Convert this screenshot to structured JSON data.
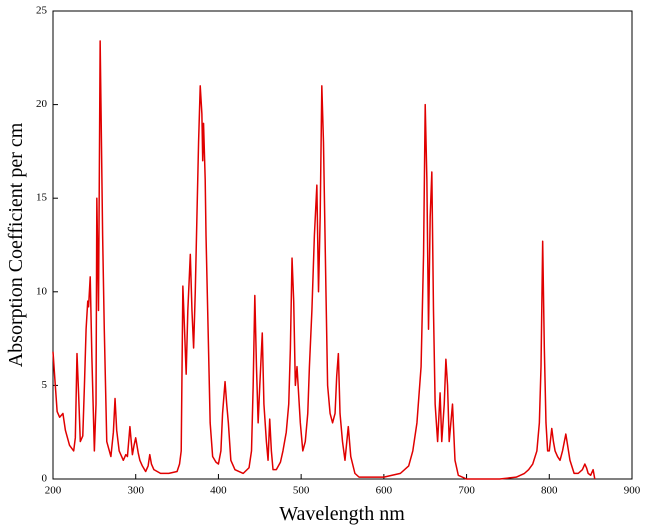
{
  "chart_data": {
    "type": "line",
    "xlabel": "Wavelength nm",
    "ylabel": "Absorption Coefficient per cm",
    "color": "#e00000",
    "x": [
      200,
      202,
      205,
      208,
      210,
      212,
      215,
      220,
      225,
      227,
      229,
      231,
      233,
      236,
      238,
      240,
      242,
      243,
      245,
      247,
      250,
      252,
      253,
      255,
      257,
      258,
      260,
      262,
      265,
      270,
      273,
      275,
      277,
      280,
      285,
      288,
      290,
      293,
      296,
      298,
      300,
      303,
      305,
      308,
      312,
      315,
      317,
      319,
      322,
      330,
      340,
      350,
      353,
      355,
      357,
      359,
      361,
      363,
      366,
      368,
      370,
      372,
      374,
      376,
      378,
      380,
      381,
      382,
      384,
      385,
      387,
      390,
      393,
      397,
      400,
      403,
      405,
      408,
      410,
      412,
      415,
      420,
      430,
      437,
      440,
      442,
      444,
      446,
      448,
      450,
      453,
      455,
      458,
      460,
      462,
      464,
      466,
      470,
      475,
      478,
      482,
      485,
      487,
      489,
      491,
      493,
      495,
      497,
      499,
      502,
      505,
      508,
      510,
      513,
      516,
      519,
      521,
      523,
      525,
      527,
      530,
      532,
      535,
      538,
      541,
      543,
      545,
      547,
      550,
      553,
      557,
      560,
      565,
      570,
      580,
      600,
      620,
      630,
      635,
      640,
      645,
      648,
      650,
      652,
      654,
      656,
      658,
      660,
      662,
      665,
      668,
      670,
      673,
      675,
      677,
      679,
      681,
      683,
      686,
      690,
      700,
      720,
      740,
      760,
      770,
      775,
      780,
      785,
      788,
      790,
      792,
      794,
      796,
      798,
      800,
      803,
      805,
      807,
      810,
      813,
      816,
      820,
      825,
      830,
      835,
      840,
      843,
      845,
      847,
      850,
      853,
      855
    ],
    "values": [
      6.8,
      5.5,
      3.6,
      3.3,
      3.4,
      3.5,
      2.6,
      1.8,
      1.5,
      2.2,
      6.7,
      4.5,
      2.0,
      2.3,
      5.0,
      8.0,
      9.5,
      9.2,
      10.8,
      6.5,
      1.5,
      4.0,
      15.0,
      9.0,
      23.4,
      20.0,
      13.0,
      8.0,
      2.0,
      1.2,
      2.5,
      4.3,
      2.6,
      1.5,
      1.0,
      1.3,
      1.2,
      2.8,
      1.3,
      1.8,
      2.2,
      1.4,
      1.0,
      0.7,
      0.4,
      0.7,
      1.3,
      0.8,
      0.5,
      0.3,
      0.3,
      0.4,
      0.8,
      1.5,
      10.3,
      8.0,
      5.6,
      9.0,
      12.0,
      9.0,
      7.0,
      10.0,
      14.0,
      18.0,
      21.0,
      19.5,
      17.0,
      19.0,
      16.0,
      13.0,
      9.0,
      3.0,
      1.2,
      0.9,
      0.8,
      1.5,
      3.5,
      5.2,
      4.0,
      3.0,
      1.0,
      0.5,
      0.3,
      0.6,
      1.5,
      5.0,
      9.8,
      6.0,
      3.0,
      5.0,
      7.8,
      4.0,
      2.0,
      1.0,
      3.2,
      1.5,
      0.5,
      0.5,
      0.9,
      1.5,
      2.5,
      4.0,
      7.0,
      11.8,
      9.5,
      5.0,
      6.0,
      4.5,
      3.0,
      1.5,
      2.0,
      3.5,
      6.0,
      9.0,
      13.0,
      15.7,
      10.0,
      14.0,
      21.0,
      18.0,
      10.0,
      5.0,
      3.5,
      3.0,
      3.5,
      5.5,
      6.7,
      3.5,
      2.0,
      1.0,
      2.8,
      1.2,
      0.3,
      0.1,
      0.1,
      0.1,
      0.3,
      0.7,
      1.5,
      3.0,
      6.0,
      12.0,
      20.0,
      16.0,
      8.0,
      14.0,
      16.4,
      9.0,
      4.0,
      2.0,
      4.6,
      2.0,
      4.0,
      6.4,
      5.0,
      2.0,
      3.0,
      4.0,
      1.0,
      0.2,
      0.0,
      0.0,
      0.0,
      0.1,
      0.3,
      0.5,
      0.8,
      1.5,
      3.0,
      6.0,
      12.7,
      7.0,
      3.0,
      1.5,
      1.5,
      2.7,
      2.0,
      1.5,
      1.2,
      1.0,
      1.5,
      2.4,
      1.0,
      0.3,
      0.3,
      0.5,
      0.8,
      0.6,
      0.3,
      0.2,
      0.5,
      0.0
    ],
    "xlim": [
      200,
      900
    ],
    "ylim": [
      0,
      25
    ],
    "xticks": [
      200,
      300,
      400,
      500,
      600,
      700,
      800,
      900
    ],
    "yticks": [
      0,
      5,
      10,
      15,
      20,
      25
    ]
  }
}
